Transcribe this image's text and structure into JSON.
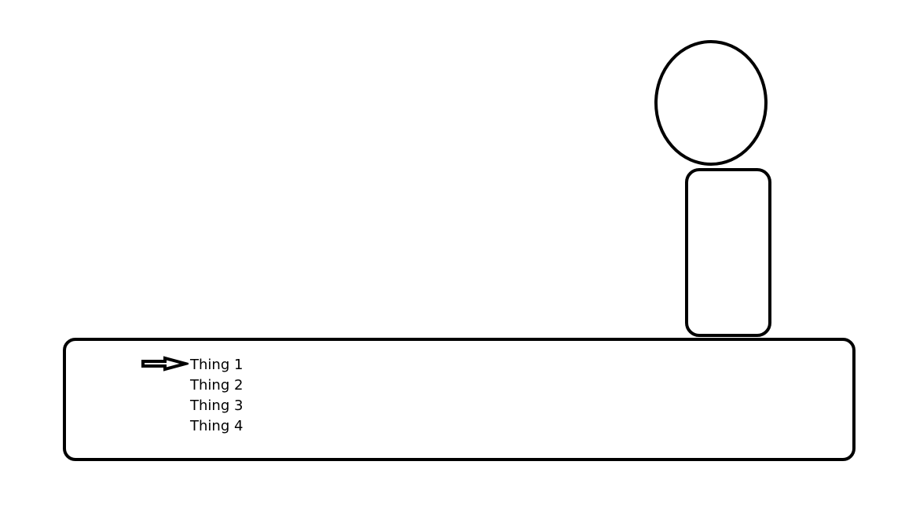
{
  "menu": {
    "items": [
      {
        "label": "Thing 1"
      },
      {
        "label": "Thing 2"
      },
      {
        "label": "Thing 3"
      },
      {
        "label": "Thing 4"
      }
    ],
    "selected_index": 0
  },
  "icons": {
    "cursor": "arrow-right-icon",
    "character_head": "circle-head",
    "character_body": "rounded-rectangle-body"
  },
  "colors": {
    "stroke": "#000000",
    "background": "#ffffff"
  }
}
